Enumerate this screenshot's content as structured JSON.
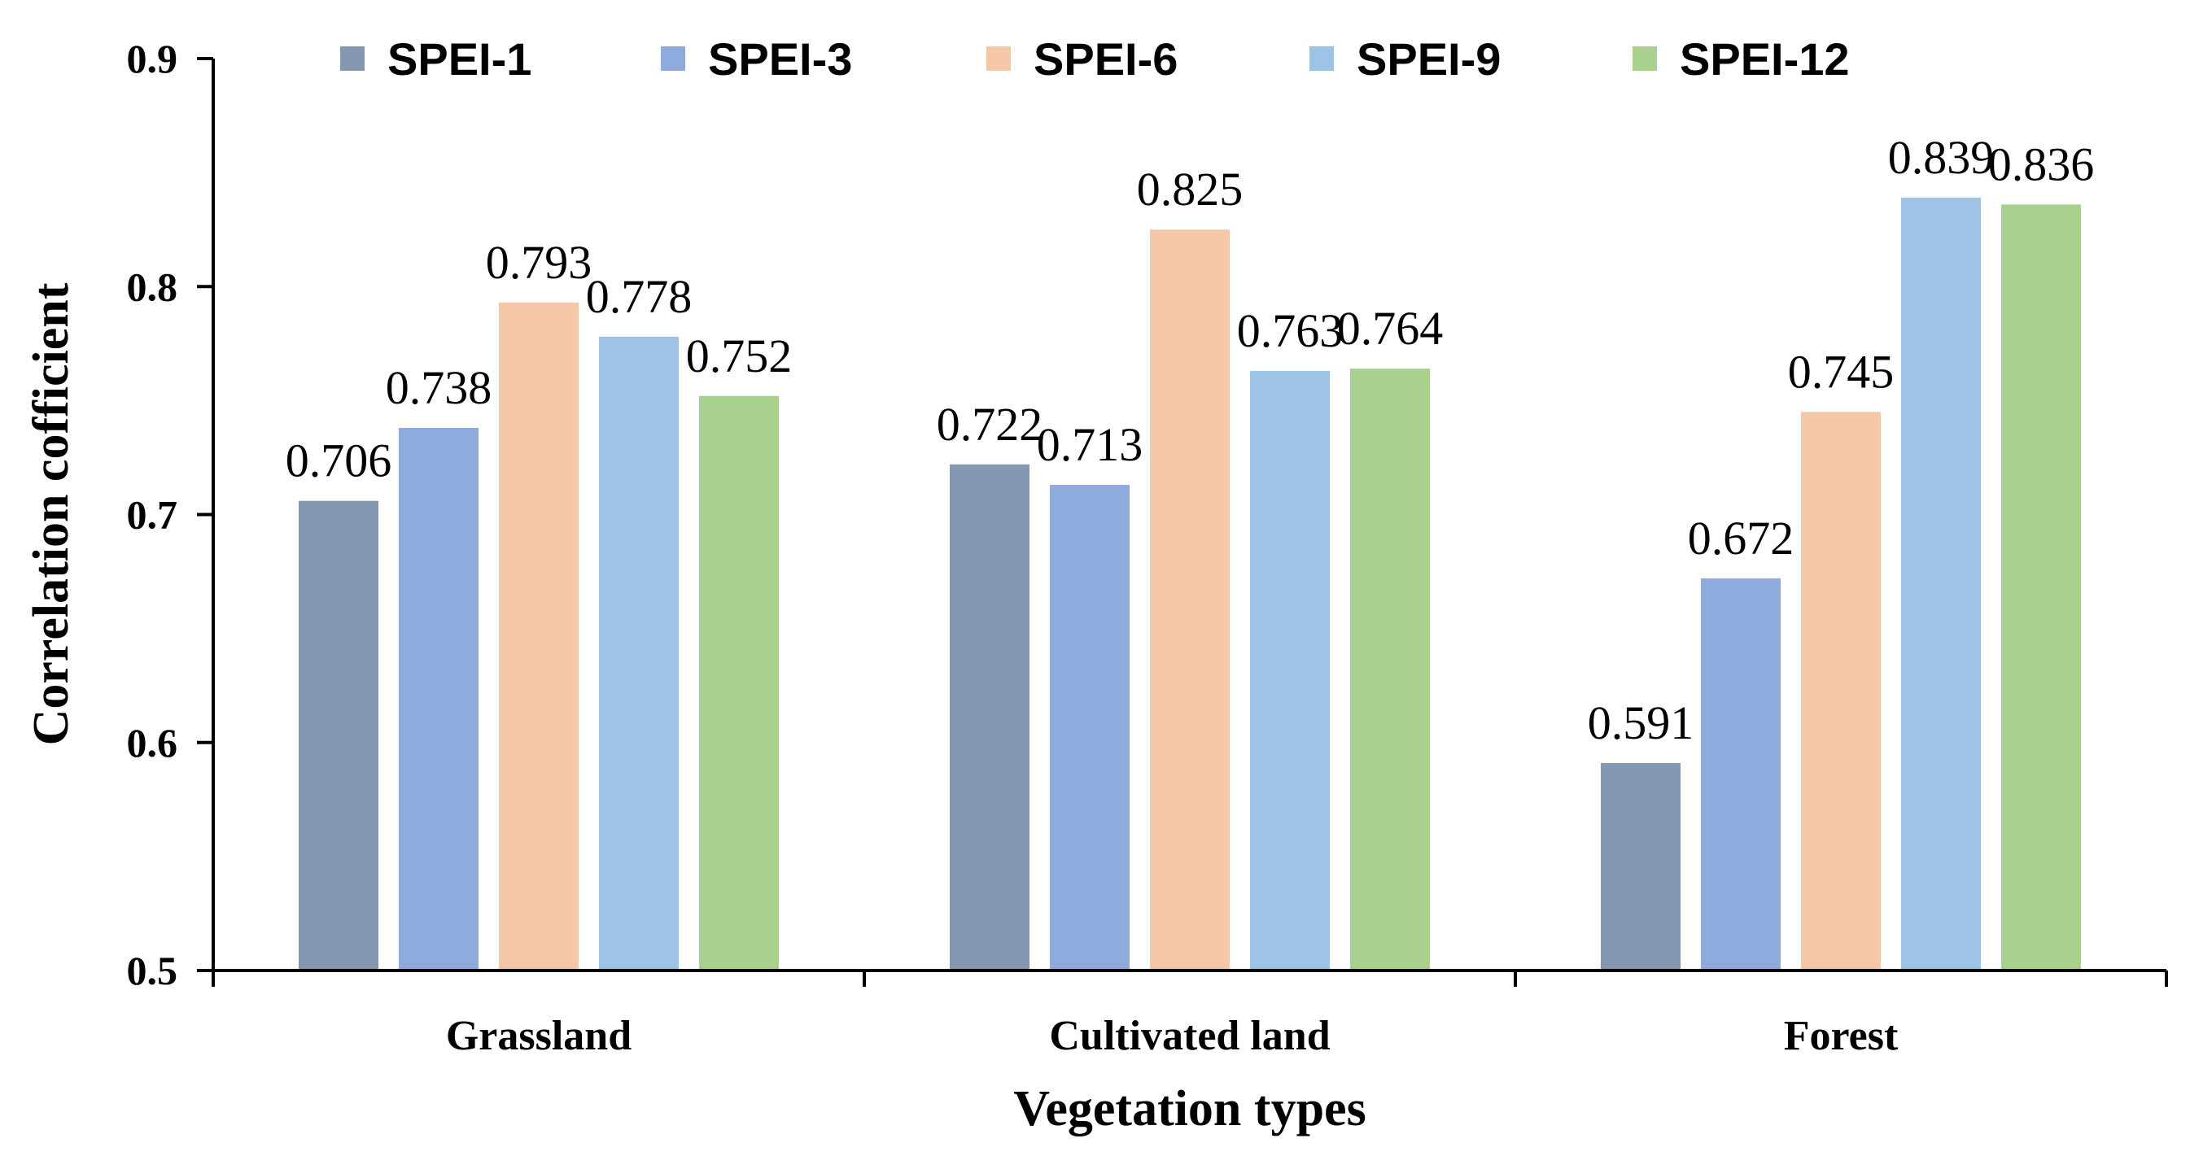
{
  "chart_data": {
    "type": "bar",
    "title": "",
    "xlabel": "Vegetation types",
    "ylabel": "Correlation cofficient",
    "ylim": [
      0.5,
      0.9
    ],
    "yticks": [
      "0.5",
      "0.6",
      "0.7",
      "0.8",
      "0.9"
    ],
    "categories": [
      "Grassland",
      "Cultivated land",
      "Forest"
    ],
    "legend_position": "top",
    "series": [
      {
        "name": "SPEI-1",
        "color": "#8497b0",
        "values": [
          0.706,
          0.722,
          0.591
        ],
        "labels": [
          "0.706",
          "0.722",
          "0.591"
        ]
      },
      {
        "name": "SPEI-3",
        "color": "#8faadc",
        "values": [
          0.738,
          0.713,
          0.672
        ],
        "labels": [
          "0.738",
          "0.713",
          "0.672"
        ]
      },
      {
        "name": "SPEI-6",
        "color": "#f4c7a8",
        "values": [
          0.793,
          0.825,
          0.745
        ],
        "labels": [
          "0.793",
          "0.825",
          "0.745"
        ]
      },
      {
        "name": "SPEI-9",
        "color": "#9dc3e6",
        "values": [
          0.778,
          0.763,
          0.839
        ],
        "labels": [
          "0.778",
          "0.763",
          "0.839"
        ]
      },
      {
        "name": "SPEI-12",
        "color": "#a9d18e",
        "values": [
          0.752,
          0.764,
          0.836
        ],
        "labels": [
          "0.752",
          "0.764",
          "0.836"
        ]
      }
    ]
  }
}
